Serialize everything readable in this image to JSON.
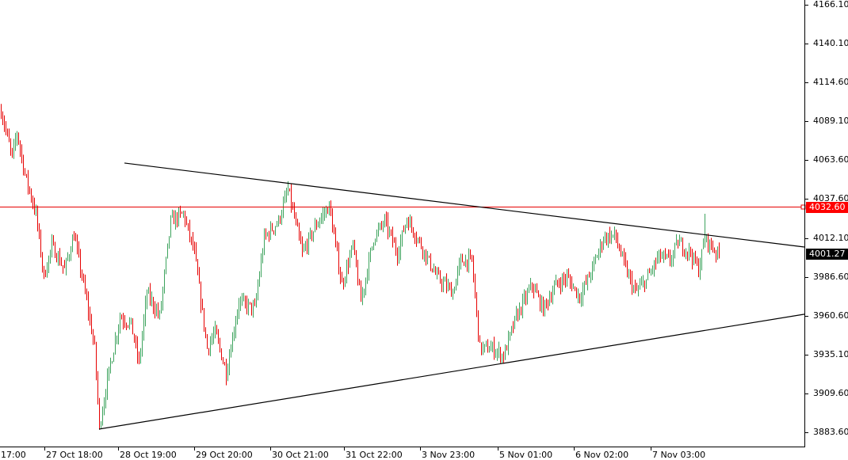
{
  "chart_data": {
    "type": "bar",
    "style": "ohlc-bars",
    "colors": {
      "up": "#3da35d",
      "down": "#e60000",
      "trendline": "#000000",
      "hline": "#e60000",
      "axis": "#000000",
      "background": "#ffffff"
    },
    "y_ticks": [
      "4166.10",
      "4140.10",
      "4114.60",
      "4089.10",
      "4063.60",
      "4037.60",
      "4012.10",
      "3986.60",
      "3960.60",
      "3935.10",
      "3909.60",
      "3883.60"
    ],
    "ylim": [
      3883.6,
      4166.1
    ],
    "x_ticks": [
      "17:00",
      "27 Oct 18:00",
      "28 Oct 19:00",
      "29 Oct 20:00",
      "30 Oct 21:00",
      "31 Oct 22:00",
      "3 Nov 23:00",
      "5 Nov 01:00",
      "6 Nov 02:00",
      "7 Nov 03:00"
    ],
    "price_path": [
      [
        0,
        4096
      ],
      [
        7,
        4065
      ],
      [
        10,
        4082
      ],
      [
        15,
        4054
      ],
      [
        22,
        4028
      ],
      [
        27,
        3986
      ],
      [
        32,
        4007
      ],
      [
        40,
        3991
      ],
      [
        46,
        4014
      ],
      [
        54,
        3970
      ],
      [
        59,
        3939
      ],
      [
        62,
        3887
      ],
      [
        67,
        3918
      ],
      [
        75,
        3960
      ],
      [
        82,
        3955
      ],
      [
        87,
        3929
      ],
      [
        92,
        3976
      ],
      [
        100,
        3960
      ],
      [
        107,
        4023
      ],
      [
        115,
        4028
      ],
      [
        122,
        4002
      ],
      [
        130,
        3939
      ],
      [
        135,
        3950
      ],
      [
        142,
        3923
      ],
      [
        150,
        3970
      ],
      [
        160,
        3965
      ],
      [
        166,
        4012
      ],
      [
        175,
        4023
      ],
      [
        181,
        4044
      ],
      [
        190,
        4002
      ],
      [
        200,
        4023
      ],
      [
        207,
        4033
      ],
      [
        215,
        3981
      ],
      [
        222,
        4007
      ],
      [
        227,
        3970
      ],
      [
        235,
        4012
      ],
      [
        242,
        4023
      ],
      [
        250,
        4002
      ],
      [
        256,
        4025
      ],
      [
        265,
        4007
      ],
      [
        275,
        3986
      ],
      [
        285,
        3976
      ],
      [
        290,
        3997
      ],
      [
        297,
        3997
      ],
      [
        302,
        3939
      ],
      [
        310,
        3939
      ],
      [
        317,
        3934
      ],
      [
        325,
        3960
      ],
      [
        335,
        3981
      ],
      [
        342,
        3965
      ],
      [
        350,
        3981
      ],
      [
        357,
        3986
      ],
      [
        365,
        3973
      ],
      [
        372,
        3989
      ],
      [
        380,
        4012
      ],
      [
        387,
        4014
      ],
      [
        395,
        3989
      ],
      [
        400,
        3976
      ],
      [
        407,
        3984
      ],
      [
        415,
        4000
      ],
      [
        422,
        3997
      ],
      [
        427,
        4009
      ],
      [
        435,
        4002
      ],
      [
        440,
        3991
      ],
      [
        444,
        4012
      ],
      [
        450,
        4004
      ],
      [
        453,
        4001
      ]
    ],
    "spike_high": [
      444,
      4028
    ],
    "horizontal_line": {
      "price": "4032.60"
    },
    "current_price": "4001.27",
    "trendlines": [
      {
        "name": "upper-trendline",
        "from": [
          78,
          4061.5
        ],
        "to": [
          507,
          4006.0
        ]
      },
      {
        "name": "lower-trendline",
        "from": [
          62,
          3885.7
        ],
        "to": [
          507,
          3961.6
        ]
      }
    ]
  }
}
